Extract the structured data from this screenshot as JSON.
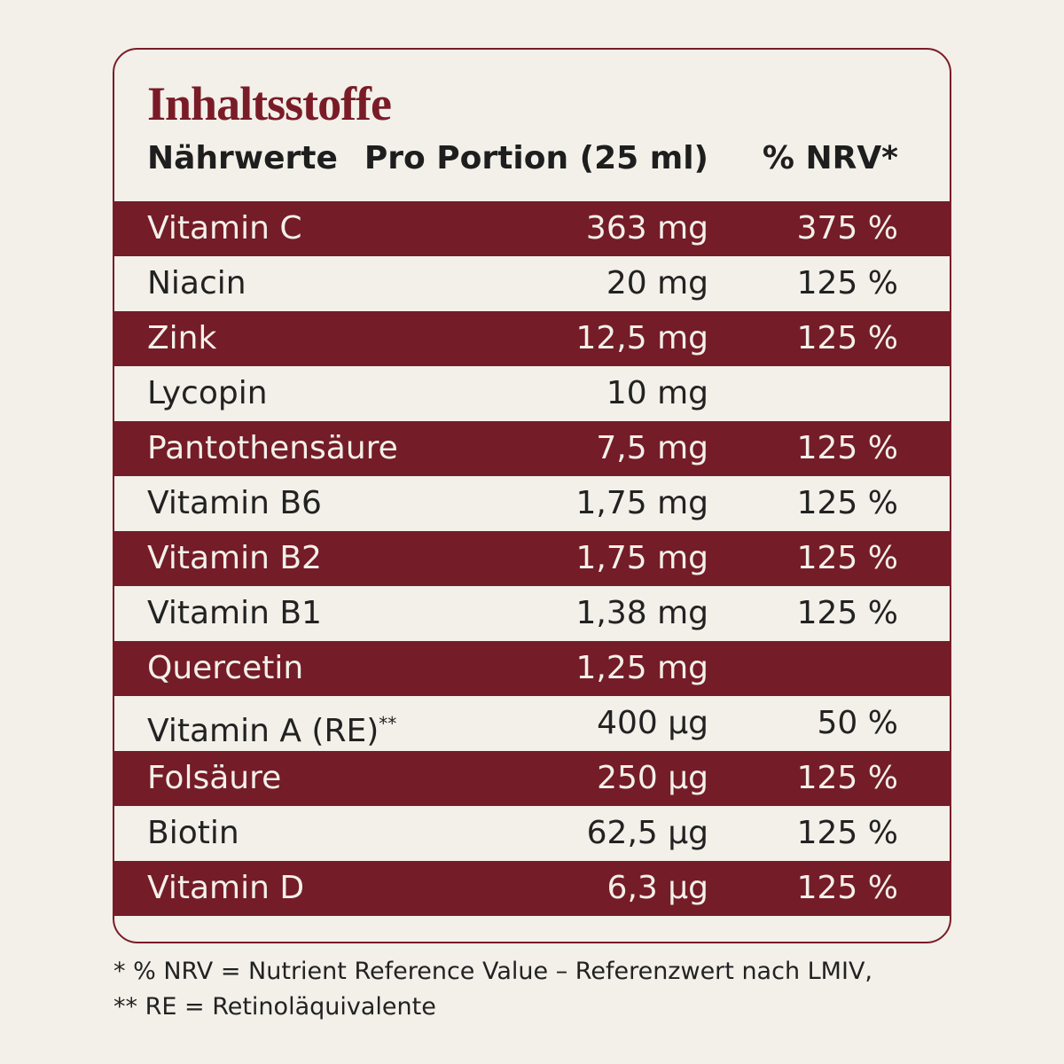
{
  "title": "Inhaltsstoffe",
  "table": {
    "header": [
      "Nährwerte",
      "Pro Portion (25 ml)",
      "% NRV*"
    ],
    "rows": [
      {
        "name": "Vitamin C",
        "amount": "363 mg",
        "nrv": "375 %"
      },
      {
        "name": "Niacin",
        "amount": "20 mg",
        "nrv": "125 %"
      },
      {
        "name": "Zink",
        "amount": "12,5 mg",
        "nrv": "125 %"
      },
      {
        "name": "Lycopin",
        "amount": "10 mg"
      },
      {
        "name": "Pantothensäure",
        "amount": "7,5 mg",
        "nrv": "125 %"
      },
      {
        "name": "Vitamin B6",
        "amount": "1,75 mg",
        "nrv": "125 %"
      },
      {
        "name": "Vitamin B2",
        "amount": "1,75 mg",
        "nrv": "125 %"
      },
      {
        "name": "Vitamin B1",
        "amount": "1,38 mg",
        "nrv": "125 %"
      },
      {
        "name": "Quercetin",
        "amount": "1,25 mg"
      },
      {
        "name": "Vitamin A (RE)",
        "mark": "**",
        "amount": "400 µg",
        "nrv": "50 %"
      },
      {
        "name": "Folsäure",
        "amount": "250 µg",
        "nrv": "125 %"
      },
      {
        "name": "Biotin",
        "amount": "62,5 µg",
        "nrv": "125 %"
      },
      {
        "name": "Vitamin D",
        "amount": "6,3 µg",
        "nrv": "125 %"
      }
    ]
  },
  "footnotes": [
    "* % NRV = Nutrient Reference Value – Referenzwert nach LMIV,",
    "** RE = Retinoläquivalente"
  ]
}
